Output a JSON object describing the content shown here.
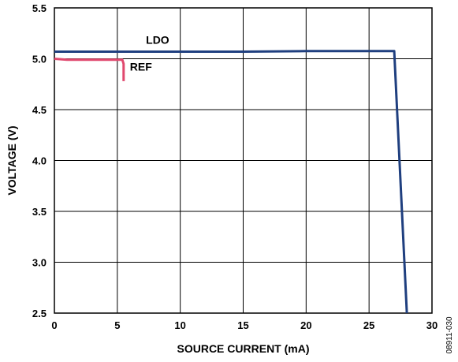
{
  "chart_data": {
    "type": "line",
    "title": "",
    "xlabel": "SOURCE CURRENT (mA)",
    "ylabel": "VOLTAGE (V)",
    "xlim": [
      0,
      30
    ],
    "ylim": [
      2.5,
      5.5
    ],
    "xticks": [
      0,
      5,
      10,
      15,
      20,
      25,
      30
    ],
    "yticks": [
      2.5,
      3.0,
      3.5,
      4.0,
      4.5,
      5.0,
      5.5
    ],
    "xtick_labels": [
      "0",
      "5",
      "10",
      "15",
      "20",
      "25",
      "30"
    ],
    "ytick_labels": [
      "2.5",
      "3.0",
      "3.5",
      "4.0",
      "4.5",
      "5.0",
      "5.5"
    ],
    "grid": true,
    "figure_id": "08911-030",
    "series": [
      {
        "name": "LDO",
        "color": "#1f3f7f",
        "x": [
          0,
          5,
          10,
          15,
          20,
          23,
          27,
          28
        ],
        "y": [
          5.07,
          5.07,
          5.07,
          5.07,
          5.075,
          5.075,
          5.075,
          2.5
        ]
      },
      {
        "name": "REF",
        "color": "#e0486e",
        "x": [
          0,
          1,
          2,
          5.4,
          5.5,
          5.5
        ],
        "y": [
          5.0,
          4.99,
          4.99,
          4.99,
          4.95,
          4.78
        ]
      }
    ]
  }
}
